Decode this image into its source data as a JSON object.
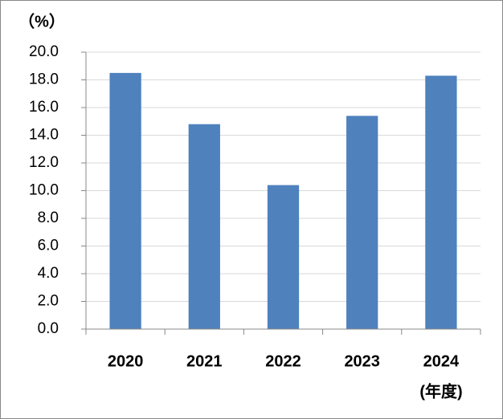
{
  "chart_data": {
    "type": "bar",
    "y_unit_label": "（%）",
    "x_axis_label": "(年度)",
    "categories": [
      "2020",
      "2021",
      "2022",
      "2023",
      "2024"
    ],
    "values": [
      18.5,
      14.8,
      10.4,
      15.4,
      18.3
    ],
    "color": "#4f81bd",
    "ylim": [
      0,
      20
    ],
    "yticks": [
      {
        "value": 0,
        "label": "0.0"
      },
      {
        "value": 2,
        "label": "2.0"
      },
      {
        "value": 4,
        "label": "4.0"
      },
      {
        "value": 6,
        "label": "6.0"
      },
      {
        "value": 8,
        "label": "8.0"
      },
      {
        "value": 10,
        "label": "10.0"
      },
      {
        "value": 12,
        "label": "12.0"
      },
      {
        "value": 14,
        "label": "14.0"
      },
      {
        "value": 16,
        "label": "16.0"
      },
      {
        "value": 18,
        "label": "18.0"
      },
      {
        "value": 20,
        "label": "20.0"
      }
    ],
    "grid": true
  }
}
